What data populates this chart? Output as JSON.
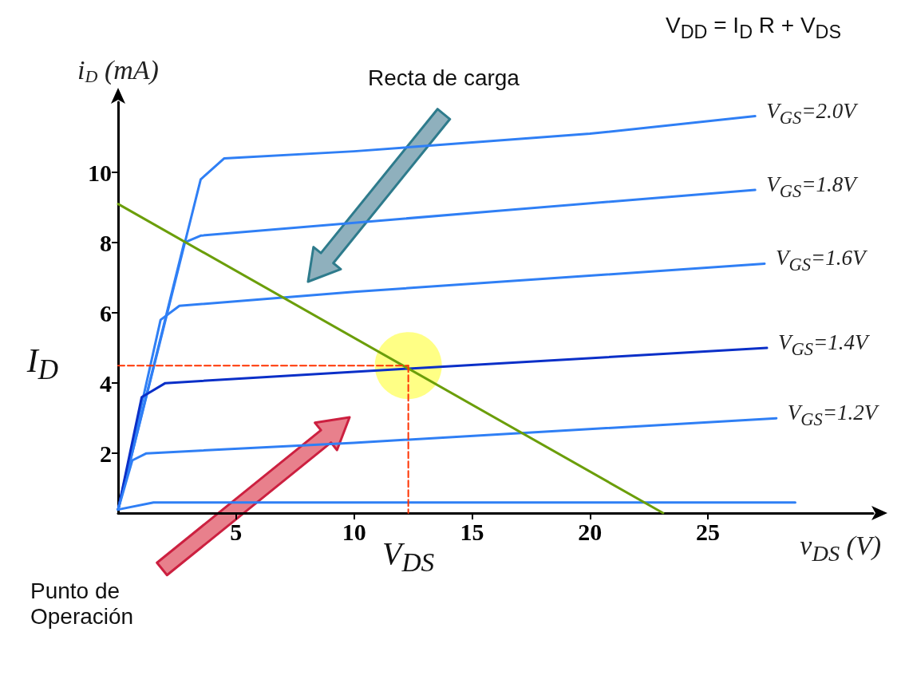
{
  "chart_data": {
    "type": "line",
    "xlabel": "v$_{DS}$ (V)",
    "ylabel": "i$_{D}$ (mA)",
    "xlim": [
      0,
      32
    ],
    "ylim": [
      0.3,
      12
    ],
    "xticks": [
      5,
      10,
      15,
      20,
      25
    ],
    "yticks": [
      2,
      4,
      6,
      8,
      10
    ],
    "marker": "none",
    "grid": false,
    "annotations": [
      "V$_{DD}$ = I$_{D}$ R + V$_{DS}$",
      "Recta de carga",
      "Punto de Operación",
      {
        "text": "I$_{D}$",
        "x": 0,
        "y": 4.5
      },
      {
        "text": "V$_{DS}$",
        "x": 12.3,
        "y": 0.3
      }
    ],
    "series": [
      {
        "type": "scatter",
        "marker": "circle",
        "color": "#ffff66",
        "x": [
          12.3
        ],
        "values": [
          4.5
        ]
      },
      {
        "name": "V$_{GS}$=2.0V",
        "color": "#2f7ff5",
        "x": [
          0,
          3.5,
          4.5,
          10,
          20,
          27
        ],
        "values": [
          0.4,
          9.8,
          10.4,
          10.6,
          11.1,
          11.6
        ]
      },
      {
        "name": "V$_{GS}$=1.8V",
        "color": "#2f7ff5",
        "x": [
          0,
          2.8,
          3.5,
          16,
          27
        ],
        "values": [
          0.4,
          8.0,
          8.2,
          8.9,
          9.5
        ]
      },
      {
        "name": "V$_{GS}$=1.6V",
        "color": "#2f7ff5",
        "x": [
          0,
          1.8,
          2.6,
          10,
          27.4
        ],
        "values": [
          0.4,
          5.8,
          6.2,
          6.6,
          7.4
        ]
      },
      {
        "name": "V$_{GS}$=1.4V",
        "color": "#0a2fc8",
        "x": [
          0,
          1,
          2,
          12,
          27.5
        ],
        "values": [
          0.4,
          3.6,
          4.0,
          4.4,
          5.0
        ]
      },
      {
        "name": "V$_{GS}$=1.2V",
        "color": "#2f7ff5",
        "x": [
          0,
          0.6,
          1.2,
          10,
          27.9
        ],
        "values": [
          0.4,
          1.8,
          2.0,
          2.3,
          3.0
        ]
      },
      {
        "color": "#2f7ff5",
        "x": [
          0,
          1.5,
          28.7
        ],
        "values": [
          0.4,
          0.6,
          0.6
        ]
      },
      {
        "color": "#6b9e0a",
        "x": [
          0,
          23.1
        ],
        "values": [
          9.1,
          0.3
        ]
      },
      {
        "color": "#ff3300",
        "line_style": "dashed",
        "x": [
          0,
          12.3
        ],
        "values": [
          4.5,
          4.5
        ]
      },
      {
        "color": "#ff3300",
        "line_style": "dashed",
        "x": [
          12.3,
          12.3
        ],
        "values": [
          4.5,
          0.3
        ]
      }
    ]
  }
}
